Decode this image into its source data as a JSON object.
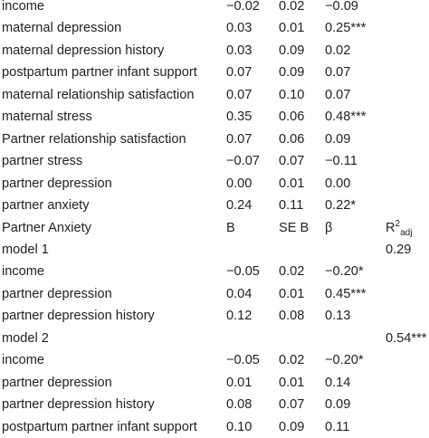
{
  "rows": [
    {
      "label": "income",
      "b": "−0.02",
      "se": "0.02",
      "beta": "−0.09",
      "r2": ""
    },
    {
      "label": "maternal depression",
      "b": "0.03",
      "se": "0.01",
      "beta": "0.25***",
      "r2": ""
    },
    {
      "label": "maternal depression history",
      "b": "0.03",
      "se": "0.09",
      "beta": "0.02",
      "r2": ""
    },
    {
      "label": "postpartum partner infant support",
      "b": "0.07",
      "se": "0.09",
      "beta": "0.07",
      "r2": ""
    },
    {
      "label": "maternal relationship satisfaction",
      "b": "0.07",
      "se": "0.10",
      "beta": "0.07",
      "r2": ""
    },
    {
      "label": "maternal stress",
      "b": "0.35",
      "se": "0.06",
      "beta": "0.48***",
      "r2": ""
    },
    {
      "label": "Partner relationship satisfaction",
      "b": "0.07",
      "se": "0.06",
      "beta": "0.09",
      "r2": ""
    },
    {
      "label": "partner stress",
      "b": "−0.07",
      "se": "0.07",
      "beta": "−0.11",
      "r2": ""
    },
    {
      "label": "partner depression",
      "b": "0.00",
      "se": "0.01",
      "beta": "0.00",
      "r2": ""
    },
    {
      "label": "partner anxiety",
      "b": "0.24",
      "se": "0.11",
      "beta": "0.22*",
      "r2": ""
    },
    {
      "label": "Partner Anxiety",
      "b": "B",
      "se": "SE B",
      "beta": "β",
      "r2": "",
      "header": true
    },
    {
      "label": "model 1",
      "b": "",
      "se": "",
      "beta": "",
      "r2": "0.29"
    },
    {
      "label": "income",
      "b": "−0.05",
      "se": "0.02",
      "beta": "−0.20*",
      "r2": ""
    },
    {
      "label": "partner depression",
      "b": "0.04",
      "se": "0.01",
      "beta": "0.45***",
      "r2": ""
    },
    {
      "label": "partner depression history",
      "b": "0.12",
      "se": "0.08",
      "beta": "0.13",
      "r2": ""
    },
    {
      "label": "model 2",
      "b": "",
      "se": "",
      "beta": "",
      "r2": "0.54***"
    },
    {
      "label": "income",
      "b": "−0.05",
      "se": "0.02",
      "beta": "−0.20*",
      "r2": ""
    },
    {
      "label": "partner depression",
      "b": "0.01",
      "se": "0.01",
      "beta": "0.14",
      "r2": ""
    },
    {
      "label": "partner depression history",
      "b": "0.08",
      "se": "0.07",
      "beta": "0.09",
      "r2": ""
    },
    {
      "label": "postpartum partner infant support",
      "b": "0.10",
      "se": "0.09",
      "beta": "0.11",
      "r2": ""
    }
  ],
  "r2_header": {
    "base": "R",
    "sup": "2",
    "sub": "adj"
  }
}
